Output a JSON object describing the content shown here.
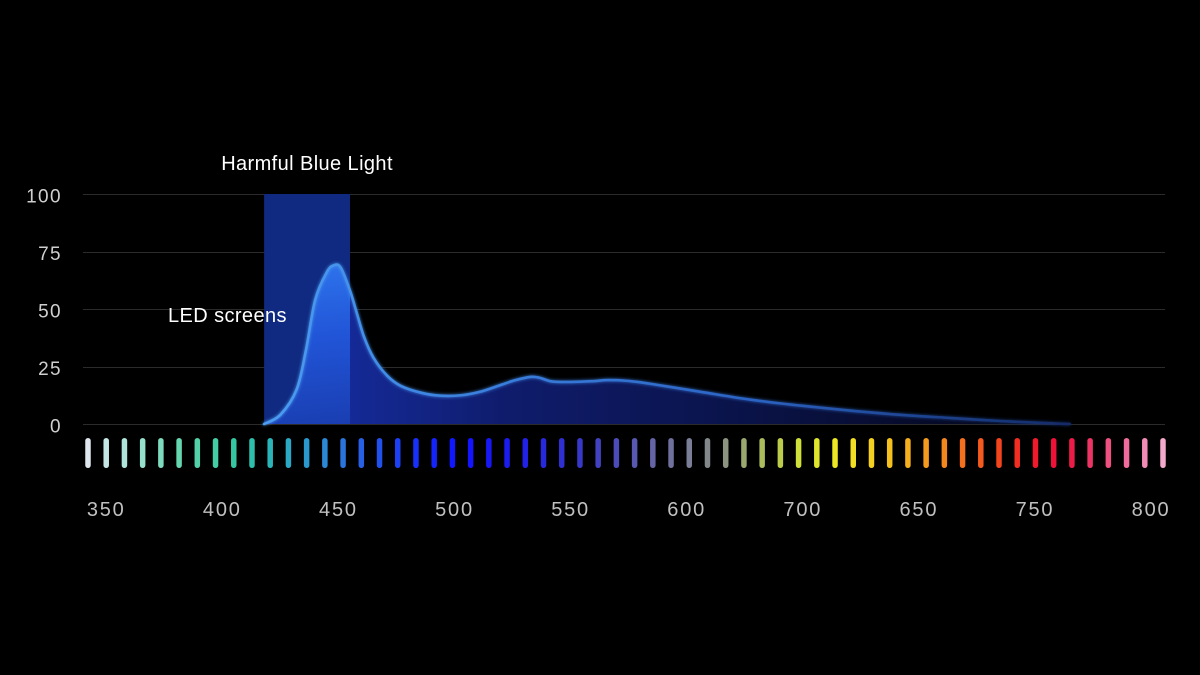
{
  "chart_data": {
    "type": "area",
    "xlim": [
      340,
      806
    ],
    "ylim": [
      0,
      100
    ],
    "yticks": [
      0,
      25,
      50,
      75,
      100
    ],
    "xtick_labels": [
      "350",
      "400",
      "450",
      "500",
      "550",
      "600",
      "700",
      "650",
      "750",
      "800"
    ],
    "grid": true,
    "series": [
      {
        "name": "LED screens",
        "color": "#3d86e2",
        "x": [
          418,
          425,
          432,
          436,
          440,
          445,
          448,
          451,
          455,
          458,
          461,
          465,
          471,
          477,
          486,
          494,
          503,
          511,
          520,
          526,
          533,
          537,
          542,
          550,
          559,
          566,
          574,
          585,
          606,
          628,
          649,
          671,
          692,
          714,
          735,
          757,
          765
        ],
        "y": [
          0,
          4,
          15,
          32,
          54,
          66,
          69,
          68,
          58,
          48,
          38,
          29,
          21,
          16.5,
          13.5,
          12.3,
          12.5,
          14,
          17,
          19,
          20.5,
          20,
          18.5,
          18.3,
          18.6,
          19.1,
          18.8,
          17.4,
          14,
          10.5,
          8,
          5.8,
          4,
          2.6,
          1.3,
          0.3,
          0
        ]
      }
    ],
    "bands": [
      {
        "label": "Harmful Blue Light",
        "x_range": [
          418,
          455
        ],
        "color": "#0f2a80"
      }
    ],
    "spectrum_colors": [
      "#dfe6ee",
      "#c6e6e6",
      "#aee4da",
      "#96e0cc",
      "#7ddbbe",
      "#66d6b0",
      "#54d0a8",
      "#44cca2",
      "#35c6a2",
      "#2ebeac",
      "#2ab4b8",
      "#2aa8c4",
      "#2a98cc",
      "#2a88d4",
      "#2a74dc",
      "#2860e4",
      "#2250ec",
      "#1c40f4",
      "#1830fa",
      "#1424fc",
      "#1018ff",
      "#1414ff",
      "#1818f6",
      "#1c1cf0",
      "#2222e6",
      "#2828dc",
      "#3030d2",
      "#3838c8",
      "#4242c0",
      "#4c4cb8",
      "#5858b0",
      "#6464a6",
      "#70709e",
      "#7a7e96",
      "#82888a",
      "#8c9480",
      "#9aa870",
      "#aabc5c",
      "#bccc4a",
      "#cede3a",
      "#dfe42c",
      "#ece624",
      "#f2de22",
      "#f4d020",
      "#f4c01e",
      "#f4ae1e",
      "#f49a1e",
      "#f4861e",
      "#f4701e",
      "#f45a1e",
      "#f4441e",
      "#f22e22",
      "#f01a2c",
      "#ee1238",
      "#ec1c48",
      "#ec3464",
      "#ee5080",
      "#f06c9c",
      "#f28ab6",
      "#f4a8cc"
    ]
  }
}
